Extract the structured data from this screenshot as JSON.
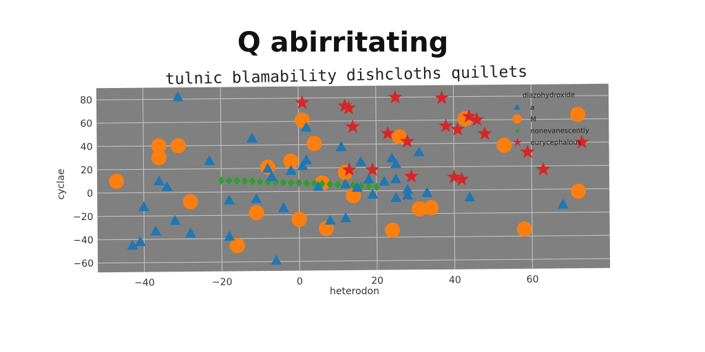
{
  "chart_data": {
    "type": "scatter",
    "title": "Q abirritating",
    "subtitle": "tulnic blamability dishcloths quillets",
    "xlabel": "heterodon",
    "ylabel": "cyclae",
    "xlim": [
      -52,
      80
    ],
    "ylim": [
      -68,
      90
    ],
    "xticks": [
      -40,
      -20,
      0,
      20,
      40,
      60
    ],
    "yticks": [
      -60,
      -40,
      -20,
      0,
      20,
      40,
      60,
      80
    ],
    "grid": true,
    "background": "#808080",
    "legend": {
      "title": "diazohydroxide",
      "placement": "top-right"
    },
    "series": [
      {
        "name": "a",
        "marker": "triangle",
        "color": "#1f77b4",
        "points": [
          [
            -31,
            82
          ],
          [
            -43,
            -45
          ],
          [
            -41,
            -42
          ],
          [
            -40,
            -12
          ],
          [
            -37,
            -33
          ],
          [
            -36,
            10
          ],
          [
            -34,
            5
          ],
          [
            -32,
            -24
          ],
          [
            -28,
            -35
          ],
          [
            -23,
            27
          ],
          [
            -18,
            -38
          ],
          [
            -18,
            -7
          ],
          [
            -12,
            46
          ],
          [
            -11,
            -6
          ],
          [
            -8,
            20
          ],
          [
            -7,
            13
          ],
          [
            -6,
            -59
          ],
          [
            -4,
            -14
          ],
          [
            -2,
            18
          ],
          [
            1,
            22
          ],
          [
            2,
            55
          ],
          [
            2,
            27
          ],
          [
            5,
            4
          ],
          [
            8,
            -25
          ],
          [
            11,
            38
          ],
          [
            12,
            6
          ],
          [
            12,
            -23
          ],
          [
            15,
            3
          ],
          [
            16,
            25
          ],
          [
            18,
            10
          ],
          [
            19,
            -3
          ],
          [
            22,
            8
          ],
          [
            24,
            28
          ],
          [
            25,
            23
          ],
          [
            25,
            10
          ],
          [
            25,
            -6
          ],
          [
            28,
            -4
          ],
          [
            28,
            1
          ],
          [
            31,
            33
          ],
          [
            33,
            -2
          ],
          [
            44,
            -6
          ],
          [
            68,
            -13
          ]
        ]
      },
      {
        "name": "M",
        "marker": "circle",
        "color": "#ff7f0e",
        "points": [
          [
            -47,
            10
          ],
          [
            -36,
            40
          ],
          [
            -36,
            30
          ],
          [
            -31,
            40
          ],
          [
            -28,
            -8
          ],
          [
            -16,
            -46
          ],
          [
            -11,
            -18
          ],
          [
            -8,
            21
          ],
          [
            -2,
            26
          ],
          [
            0,
            -24
          ],
          [
            1,
            61
          ],
          [
            4,
            41
          ],
          [
            6,
            7
          ],
          [
            7,
            -32
          ],
          [
            12,
            16
          ],
          [
            14,
            -4
          ],
          [
            24,
            -34
          ],
          [
            26,
            46
          ],
          [
            31,
            -16
          ],
          [
            34,
            -15
          ],
          [
            43,
            61
          ],
          [
            53,
            38
          ],
          [
            58,
            -34
          ],
          [
            72,
            -2
          ],
          [
            72,
            64
          ]
        ]
      },
      {
        "name": "nonevanescently",
        "marker": "diamond",
        "color": "#2ca02c",
        "points": [
          [
            -20,
            10
          ],
          [
            -18,
            9.8
          ],
          [
            -16,
            9.6
          ],
          [
            -14,
            9.3
          ],
          [
            -12,
            9.0
          ],
          [
            -10,
            8.7
          ],
          [
            -8,
            8.4
          ],
          [
            -6,
            8.1
          ],
          [
            -4,
            7.8
          ],
          [
            -2,
            7.5
          ],
          [
            0,
            7.2
          ],
          [
            2,
            6.9
          ],
          [
            4,
            6.6
          ],
          [
            6,
            6.3
          ],
          [
            8,
            6.0
          ],
          [
            10,
            5.6
          ],
          [
            12,
            5.2
          ],
          [
            14,
            4.8
          ],
          [
            16,
            4.3
          ],
          [
            18,
            3.8
          ],
          [
            20,
            3.2
          ]
        ]
      },
      {
        "name": "eurycephalous",
        "marker": "star",
        "color": "#d62728",
        "points": [
          [
            1,
            76
          ],
          [
            12,
            73
          ],
          [
            13,
            71
          ],
          [
            14,
            55
          ],
          [
            13,
            18
          ],
          [
            19,
            18
          ],
          [
            23,
            49
          ],
          [
            25,
            80
          ],
          [
            28,
            42
          ],
          [
            29,
            12
          ],
          [
            37,
            79
          ],
          [
            38,
            55
          ],
          [
            40,
            11
          ],
          [
            41,
            52
          ],
          [
            42,
            9
          ],
          [
            44,
            63
          ],
          [
            46,
            60
          ],
          [
            48,
            48
          ],
          [
            59,
            32
          ],
          [
            63,
            17
          ],
          [
            73,
            40
          ]
        ]
      }
    ]
  }
}
